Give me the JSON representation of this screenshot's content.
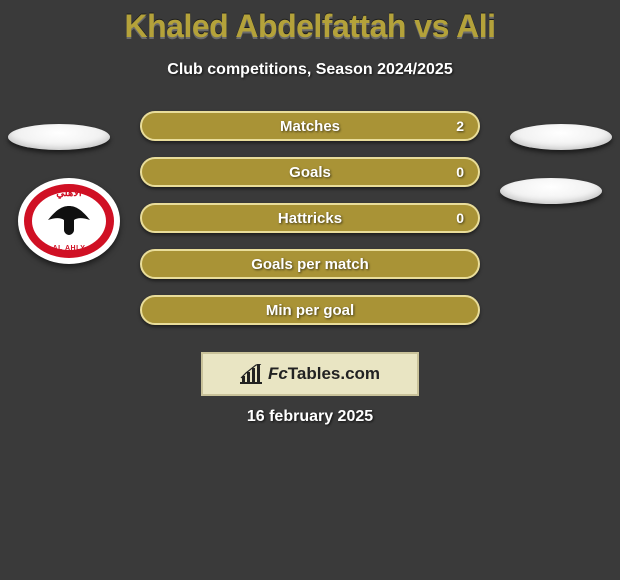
{
  "title": "Khaled Abdelfattah vs Ali",
  "subtitle": "Club competitions, Season 2024/2025",
  "date": "16 february 2025",
  "brand": "FcTables.com",
  "colors": {
    "background": "#3a3a3a",
    "title": "#b4a23a",
    "pill_bg": "#a99336",
    "pill_border": "#e9dd9a",
    "brand_bg": "#e9e5c3",
    "brand_border": "#c9c29a",
    "club_red": "#d01024",
    "text": "#ffffff"
  },
  "layout": {
    "pill_width": 340,
    "pill_height": 30,
    "row_spacing": 46,
    "brand_box_width": 218,
    "brand_box_height": 44,
    "side_ellipse_width": 102,
    "side_ellipse_height": 26,
    "badge_width": 102,
    "badge_height": 86
  },
  "typography": {
    "title_fontsize": 32,
    "subtitle_fontsize": 16,
    "stat_label_fontsize": 15,
    "brand_fontsize": 17,
    "date_fontsize": 16
  },
  "club_badge": {
    "name": "AL AHLY",
    "arabic": "الأهلي",
    "year": "1907"
  },
  "stats": [
    {
      "label": "Matches",
      "value": "2"
    },
    {
      "label": "Goals",
      "value": "0"
    },
    {
      "label": "Hattricks",
      "value": "0"
    },
    {
      "label": "Goals per match",
      "value": ""
    },
    {
      "label": "Min per goal",
      "value": ""
    }
  ]
}
